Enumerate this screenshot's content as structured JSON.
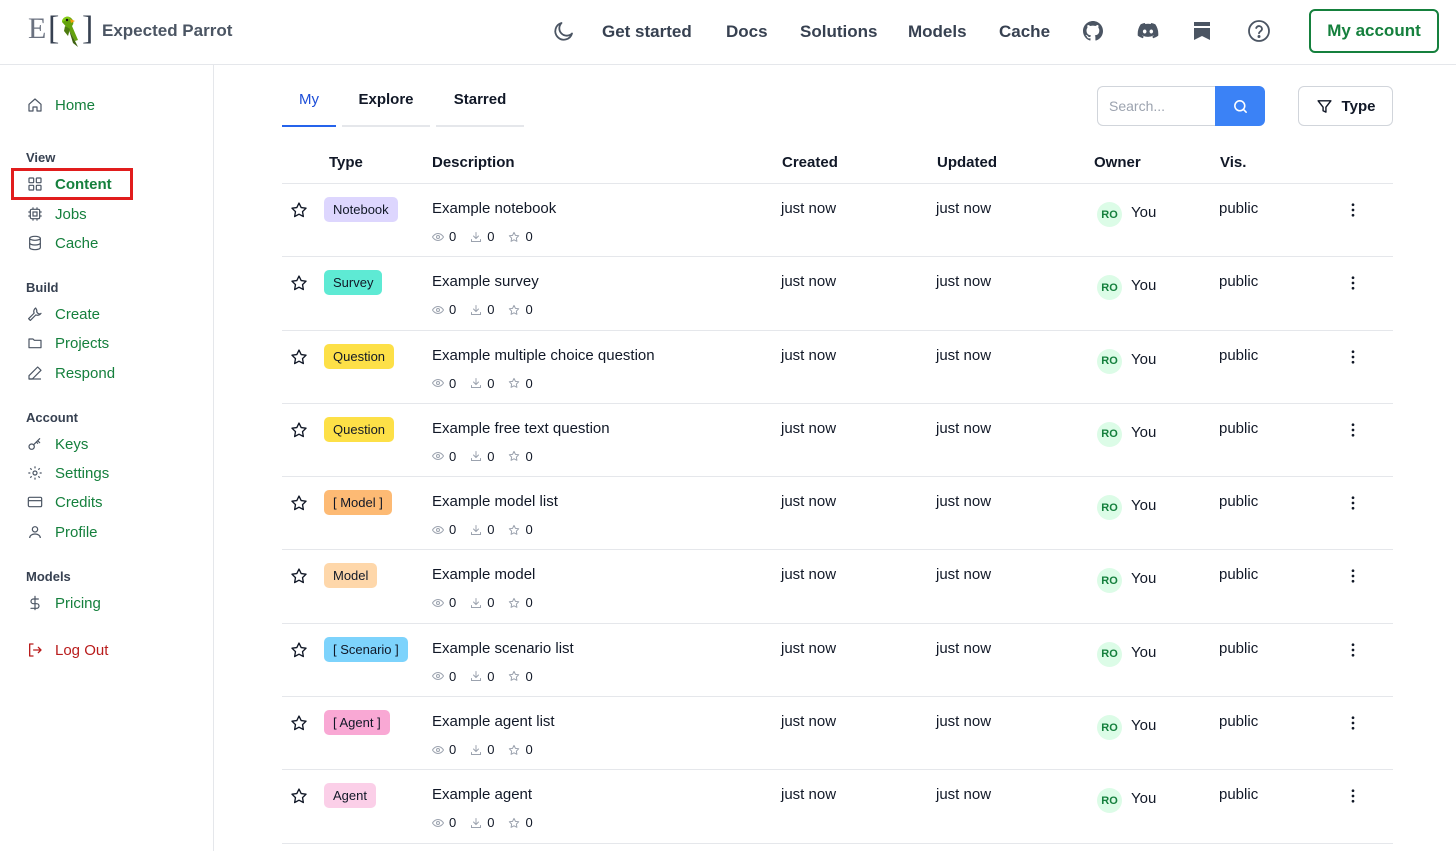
{
  "header": {
    "brand_name": "Expected Parrot",
    "logo_letter": "E",
    "nav": [
      "Get started",
      "Docs",
      "Solutions",
      "Models",
      "Cache"
    ],
    "icons": [
      "moon-icon",
      "github-icon",
      "discord-icon",
      "blog-icon",
      "help-icon"
    ],
    "account_label": "My account"
  },
  "sidebar": {
    "home": "Home",
    "groups": [
      {
        "label": "View",
        "items": [
          "Content",
          "Jobs",
          "Cache"
        ]
      },
      {
        "label": "Build",
        "items": [
          "Create",
          "Projects",
          "Respond"
        ]
      },
      {
        "label": "Account",
        "items": [
          "Keys",
          "Settings",
          "Credits",
          "Profile"
        ]
      },
      {
        "label": "Models",
        "items": [
          "Pricing"
        ]
      }
    ],
    "logout": "Log Out",
    "active": "Content"
  },
  "tabs": [
    "My",
    "Explore",
    "Starred"
  ],
  "active_tab": "My",
  "search": {
    "placeholder": "Search..."
  },
  "type_filter_label": "Type",
  "table": {
    "columns": [
      "Type",
      "Description",
      "Created",
      "Updated",
      "Owner",
      "Vis."
    ],
    "rows": [
      {
        "type": "Notebook",
        "type_color": "#ddd6fe",
        "description": "Example notebook",
        "views": "0",
        "downloads": "0",
        "stars": "0",
        "created": "just now",
        "updated": "just now",
        "owner_initials": "RO",
        "owner": "You",
        "visibility": "public"
      },
      {
        "type": "Survey",
        "type_color": "#5eead4",
        "description": "Example survey",
        "views": "0",
        "downloads": "0",
        "stars": "0",
        "created": "just now",
        "updated": "just now",
        "owner_initials": "RO",
        "owner": "You",
        "visibility": "public"
      },
      {
        "type": "Question",
        "type_color": "#fde047",
        "description": "Example multiple choice question",
        "views": "0",
        "downloads": "0",
        "stars": "0",
        "created": "just now",
        "updated": "just now",
        "owner_initials": "RO",
        "owner": "You",
        "visibility": "public"
      },
      {
        "type": "Question",
        "type_color": "#fde047",
        "description": "Example free text question",
        "views": "0",
        "downloads": "0",
        "stars": "0",
        "created": "just now",
        "updated": "just now",
        "owner_initials": "RO",
        "owner": "You",
        "visibility": "public"
      },
      {
        "type": "[ Model ]",
        "type_color": "#fdba74",
        "description": "Example model list",
        "views": "0",
        "downloads": "0",
        "stars": "0",
        "created": "just now",
        "updated": "just now",
        "owner_initials": "RO",
        "owner": "You",
        "visibility": "public"
      },
      {
        "type": "Model",
        "type_color": "#fed7aa",
        "description": "Example model",
        "views": "0",
        "downloads": "0",
        "stars": "0",
        "created": "just now",
        "updated": "just now",
        "owner_initials": "RO",
        "owner": "You",
        "visibility": "public"
      },
      {
        "type": "[ Scenario ]",
        "type_color": "#7dd3fc",
        "description": "Example scenario list",
        "views": "0",
        "downloads": "0",
        "stars": "0",
        "created": "just now",
        "updated": "just now",
        "owner_initials": "RO",
        "owner": "You",
        "visibility": "public"
      },
      {
        "type": "[ Agent ]",
        "type_color": "#f9a8d4",
        "description": "Example agent list",
        "views": "0",
        "downloads": "0",
        "stars": "0",
        "created": "just now",
        "updated": "just now",
        "owner_initials": "RO",
        "owner": "You",
        "visibility": "public"
      },
      {
        "type": "Agent",
        "type_color": "#fbcfe8",
        "description": "Example agent",
        "views": "0",
        "downloads": "0",
        "stars": "0",
        "created": "just now",
        "updated": "just now",
        "owner_initials": "RO",
        "owner": "You",
        "visibility": "public"
      }
    ]
  },
  "colors": {
    "accent_green": "#15803d",
    "primary_blue": "#3b82f6",
    "logout_red": "#b91c1c",
    "highlight_red": "#e11d1d"
  }
}
